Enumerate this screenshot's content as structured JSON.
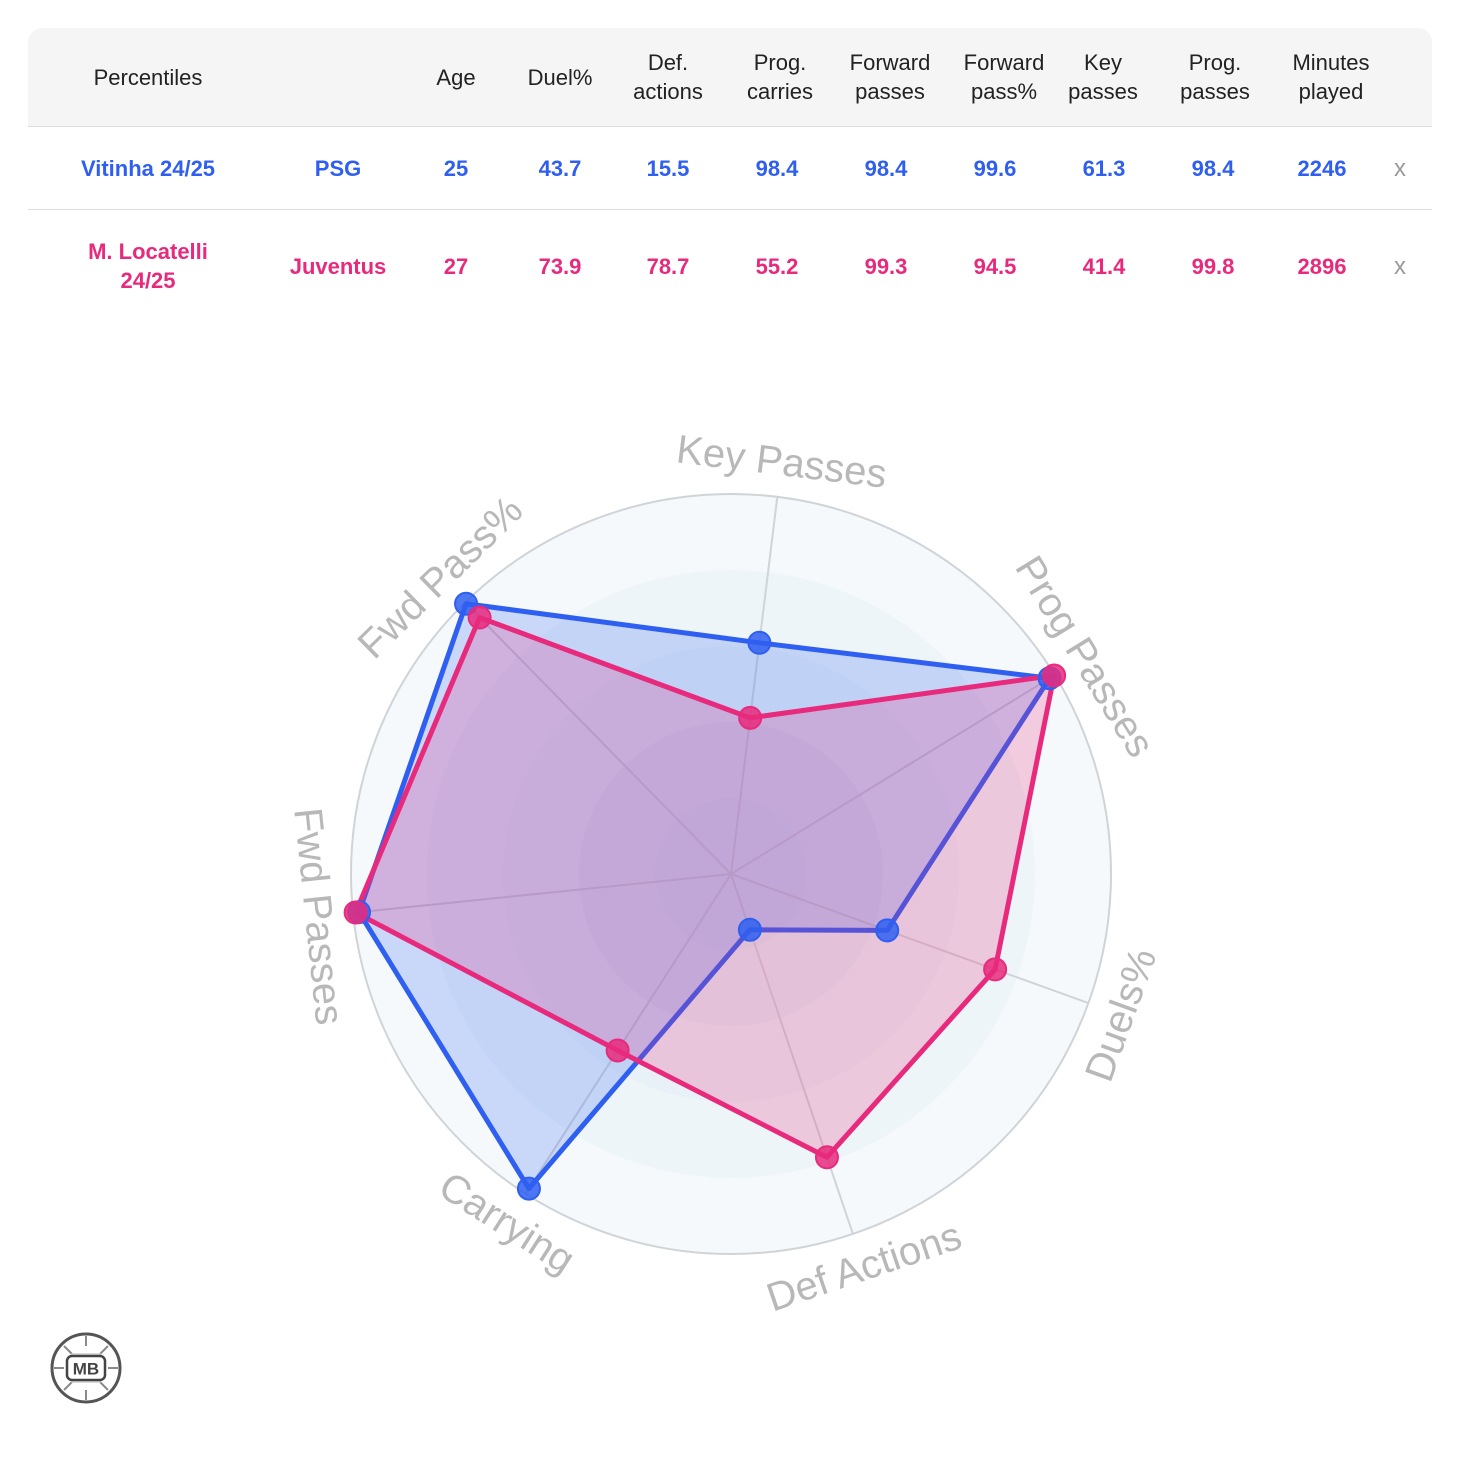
{
  "table": {
    "headers": [
      "Percentiles",
      "",
      "Age",
      "Duel%",
      "Def. actions",
      "Prog. carries",
      "Forward passes",
      "Forward pass%",
      "Key passes",
      "Prog. passes",
      "Minutes played"
    ],
    "rows": [
      {
        "player": "Vitinha 24/25",
        "team": "PSG",
        "age": "25",
        "values": [
          "43.7",
          "15.5",
          "98.4",
          "98.4",
          "99.6",
          "61.3",
          "98.4"
        ],
        "minutes": "2246",
        "remove": "x",
        "color": "#2f5ff0"
      },
      {
        "player": "M. Locatelli 24/25",
        "team": "Juventus",
        "age": "27",
        "values": [
          "73.9",
          "78.7",
          "55.2",
          "99.3",
          "94.5",
          "41.4",
          "99.8"
        ],
        "minutes": "2896",
        "remove": "x",
        "color": "#e82a7d"
      }
    ]
  },
  "chart_data": {
    "type": "radar",
    "axes": [
      "Key Passes",
      "Prog Passes",
      "Duels%",
      "Def Actions",
      "Carrying",
      "Fwd Passes",
      "Fwd Pass%"
    ],
    "range": [
      0,
      100
    ],
    "series": [
      {
        "name": "Vitinha 24/25",
        "color": "#2f5ff0",
        "values": [
          61.3,
          98.4,
          43.7,
          15.5,
          98.4,
          98.4,
          99.6
        ]
      },
      {
        "name": "M. Locatelli 24/25",
        "color": "#e82a7d",
        "values": [
          41.4,
          99.8,
          73.9,
          78.7,
          55.2,
          99.3,
          94.5
        ]
      }
    ]
  },
  "logo": {
    "text": "MB"
  }
}
